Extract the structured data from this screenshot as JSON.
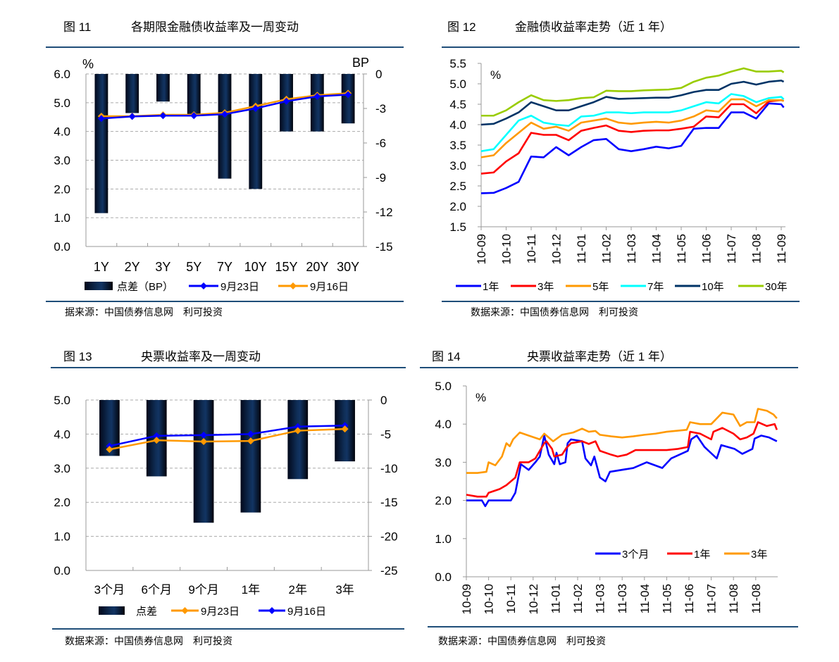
{
  "figures": [
    {
      "label": "图 11",
      "title": "各期限金融债收益率及一周变动",
      "source": "据来源：中国债券信息网　利可投资"
    },
    {
      "label": "图 12",
      "title": "金融债收益率走势（近 1 年）",
      "source": "数据来源：中国债券信息网　利可投资"
    },
    {
      "label": "图 13",
      "title": "央票收益率及一周变动",
      "source": "数据来源：中国债券信息网　利可投资"
    },
    {
      "label": "图 14",
      "title": "央票收益率走势（近 1 年）",
      "source": "数据来源：中国债券信息网　利可投资"
    }
  ],
  "chart_data": [
    {
      "type": "bar+line",
      "left_unit": "%",
      "right_unit": "BP",
      "ylim_left": [
        0,
        6
      ],
      "ylim_right": [
        -15,
        0
      ],
      "left_ticks": [
        "0.0",
        "1.0",
        "2.0",
        "3.0",
        "4.0",
        "5.0",
        "6.0"
      ],
      "right_ticks": [
        "-15",
        "-12",
        "-9",
        "-6",
        "-3",
        "0"
      ],
      "categories": [
        "1Y",
        "2Y",
        "3Y",
        "5Y",
        "7Y",
        "10Y",
        "15Y",
        "20Y",
        "30Y"
      ],
      "bar_series": {
        "name": "点差（BP）",
        "values": [
          -12.1,
          -3.4,
          -2.4,
          -3.6,
          -9.1,
          -10.0,
          -5.0,
          -5.0,
          -4.3
        ]
      },
      "line_series": [
        {
          "name": "9月23日",
          "color": "#0000ff",
          "values": [
            4.45,
            4.52,
            4.55,
            4.55,
            4.6,
            4.8,
            5.05,
            5.22,
            5.28
          ]
        },
        {
          "name": "9月16日",
          "color": "#ff9900",
          "values": [
            4.53,
            4.53,
            4.58,
            4.58,
            4.65,
            4.88,
            5.12,
            5.26,
            5.33
          ]
        }
      ],
      "grid": true,
      "legend": "bottom"
    },
    {
      "type": "line",
      "unit": "%",
      "ylim": [
        1.5,
        5.5
      ],
      "yticks": [
        "1.5",
        "2.0",
        "2.5",
        "3.0",
        "3.5",
        "4.0",
        "4.5",
        "5.0",
        "5.5"
      ],
      "xticks": [
        "10-09",
        "10-10",
        "10-11",
        "10-12",
        "11-01",
        "11-02",
        "11-03",
        "11-04",
        "11-05",
        "11-06",
        "11-07",
        "11-08",
        "11-09"
      ],
      "x": [
        0,
        0.5,
        1,
        1.5,
        2,
        2.5,
        3,
        3.5,
        4,
        4.5,
        5,
        5.5,
        6,
        6.5,
        7,
        7.5,
        8,
        8.5,
        9,
        9.5,
        10,
        10.5,
        11,
        11.5,
        12,
        12.1
      ],
      "series": [
        {
          "name": "1年",
          "color": "#0000ff",
          "values": [
            2.32,
            2.33,
            2.45,
            2.6,
            3.22,
            3.2,
            3.45,
            3.25,
            3.45,
            3.62,
            3.65,
            3.4,
            3.35,
            3.4,
            3.46,
            3.42,
            3.48,
            3.9,
            3.92,
            3.92,
            4.3,
            4.3,
            4.15,
            4.52,
            4.5,
            4.42
          ]
        },
        {
          "name": "3年",
          "color": "#ff0000",
          "values": [
            2.8,
            2.83,
            3.1,
            3.3,
            3.8,
            3.75,
            3.75,
            3.62,
            3.85,
            3.92,
            3.98,
            3.85,
            3.82,
            3.85,
            3.86,
            3.86,
            3.9,
            3.95,
            4.2,
            4.18,
            4.5,
            4.5,
            4.28,
            4.57,
            4.6,
            4.58
          ]
        },
        {
          "name": "5年",
          "color": "#ff9900",
          "values": [
            3.2,
            3.25,
            3.55,
            3.8,
            4.05,
            3.9,
            3.95,
            3.85,
            4.05,
            4.1,
            4.15,
            4.05,
            4.02,
            4.05,
            4.07,
            4.05,
            4.1,
            4.2,
            4.35,
            4.32,
            4.62,
            4.62,
            4.45,
            4.6,
            4.6,
            4.58
          ]
        },
        {
          "name": "7年",
          "color": "#00ffff",
          "values": [
            3.35,
            3.4,
            3.75,
            4.1,
            4.22,
            4.05,
            4.0,
            3.97,
            4.2,
            4.22,
            4.3,
            4.3,
            4.28,
            4.3,
            4.3,
            4.3,
            4.35,
            4.45,
            4.55,
            4.52,
            4.75,
            4.7,
            4.55,
            4.65,
            4.68,
            4.62
          ]
        },
        {
          "name": "10年",
          "color": "#003366",
          "values": [
            4.0,
            4.02,
            4.15,
            4.3,
            4.55,
            4.45,
            4.35,
            4.35,
            4.45,
            4.55,
            4.68,
            4.63,
            4.64,
            4.65,
            4.66,
            4.66,
            4.72,
            4.8,
            4.85,
            4.85,
            5.0,
            5.05,
            4.98,
            5.05,
            5.08,
            5.05
          ]
        },
        {
          "name": "30年",
          "color": "#99cc00",
          "values": [
            4.22,
            4.22,
            4.35,
            4.55,
            4.72,
            4.6,
            4.58,
            4.6,
            4.65,
            4.67,
            4.83,
            4.82,
            4.82,
            4.84,
            4.85,
            4.86,
            4.9,
            5.05,
            5.15,
            5.2,
            5.3,
            5.38,
            5.3,
            5.3,
            5.32,
            5.28
          ]
        }
      ],
      "legend": "bottom"
    },
    {
      "type": "bar+line",
      "ylim_left": [
        0,
        5
      ],
      "ylim_right": [
        -25,
        0
      ],
      "left_ticks": [
        "0.0",
        "1.0",
        "2.0",
        "3.0",
        "4.0",
        "5.0"
      ],
      "right_ticks": [
        "-25",
        "-20",
        "-15",
        "-10",
        "-5",
        "0"
      ],
      "categories": [
        "3个月",
        "6个月",
        "9个月",
        "1年",
        "2年",
        "3年"
      ],
      "bar_series": {
        "name": "点差",
        "values": [
          -8.2,
          -11.2,
          -18.0,
          -16.5,
          -11.6,
          -9.0
        ]
      },
      "line_series": [
        {
          "name": "9月23日",
          "color": "#ff9900",
          "values": [
            3.55,
            3.82,
            3.78,
            3.8,
            4.1,
            4.15
          ]
        },
        {
          "name": "9月16日",
          "color": "#0000ff",
          "values": [
            3.65,
            3.95,
            3.97,
            4.0,
            4.22,
            4.25
          ]
        }
      ],
      "grid": true,
      "legend": "bottom"
    },
    {
      "type": "line",
      "unit": "%",
      "ylim": [
        0,
        5
      ],
      "yticks": [
        "0.0",
        "1.0",
        "2.0",
        "3.0",
        "4.0",
        "5.0"
      ],
      "xticks": [
        "10-09",
        "10-10",
        "10-11",
        "10-12",
        "11-01",
        "11-02",
        "11-03",
        "11-03",
        "11-04",
        "11-05",
        "11-06",
        "11-07",
        "11-08",
        "11-08"
      ],
      "series": [
        {
          "name": "3个月",
          "color": "#0000ff",
          "points": [
            [
              0,
              2.0
            ],
            [
              0.7,
              2.0
            ],
            [
              0.85,
              1.85
            ],
            [
              1,
              2.0
            ],
            [
              1.7,
              2.0
            ],
            [
              2.0,
              2.0
            ],
            [
              2.2,
              2.2
            ],
            [
              2.45,
              2.95
            ],
            [
              2.8,
              2.8
            ],
            [
              3.1,
              3.0
            ],
            [
              3.3,
              3.15
            ],
            [
              3.5,
              3.7
            ],
            [
              3.7,
              3.2
            ],
            [
              3.95,
              2.95
            ],
            [
              4.05,
              3.25
            ],
            [
              4.2,
              2.95
            ],
            [
              4.45,
              3.0
            ],
            [
              4.55,
              3.5
            ],
            [
              4.7,
              3.6
            ],
            [
              5.2,
              3.55
            ],
            [
              5.35,
              3.1
            ],
            [
              5.6,
              2.92
            ],
            [
              5.75,
              3.15
            ],
            [
              6.0,
              2.6
            ],
            [
              6.25,
              2.5
            ],
            [
              6.45,
              2.75
            ],
            [
              7.5,
              2.85
            ],
            [
              8.1,
              3.0
            ],
            [
              8.8,
              2.85
            ],
            [
              9.2,
              3.1
            ],
            [
              9.95,
              3.3
            ],
            [
              10.1,
              3.6
            ],
            [
              10.35,
              3.7
            ],
            [
              10.7,
              3.4
            ],
            [
              11.25,
              3.1
            ],
            [
              11.45,
              3.45
            ],
            [
              12.05,
              3.35
            ],
            [
              12.4,
              3.22
            ],
            [
              12.85,
              3.35
            ],
            [
              12.95,
              3.62
            ],
            [
              13.25,
              3.7
            ],
            [
              13.6,
              3.65
            ],
            [
              13.95,
              3.55
            ]
          ]
        },
        {
          "name": "1年",
          "color": "#ff0000",
          "points": [
            [
              0,
              2.15
            ],
            [
              0.5,
              2.1
            ],
            [
              0.9,
              2.1
            ],
            [
              1.0,
              2.2
            ],
            [
              1.5,
              2.3
            ],
            [
              1.8,
              2.4
            ],
            [
              2.0,
              2.5
            ],
            [
              2.2,
              2.6
            ],
            [
              2.4,
              3.0
            ],
            [
              2.8,
              3.0
            ],
            [
              3.1,
              3.1
            ],
            [
              3.5,
              3.5
            ],
            [
              3.6,
              3.55
            ],
            [
              3.85,
              3.35
            ],
            [
              3.95,
              3.15
            ],
            [
              4.3,
              3.2
            ],
            [
              4.5,
              3.38
            ],
            [
              4.7,
              3.5
            ],
            [
              5.2,
              3.55
            ],
            [
              5.5,
              3.48
            ],
            [
              5.8,
              3.55
            ],
            [
              6.0,
              3.3
            ],
            [
              6.5,
              3.2
            ],
            [
              6.8,
              3.15
            ],
            [
              7.2,
              3.2
            ],
            [
              7.6,
              3.32
            ],
            [
              9,
              3.32
            ],
            [
              9.5,
              3.35
            ],
            [
              9.95,
              3.4
            ],
            [
              10.05,
              3.8
            ],
            [
              10.5,
              3.75
            ],
            [
              11,
              3.6
            ],
            [
              11.1,
              3.8
            ],
            [
              11.5,
              3.9
            ],
            [
              12,
              3.75
            ],
            [
              12.3,
              3.6
            ],
            [
              12.6,
              3.65
            ],
            [
              12.9,
              3.75
            ],
            [
              13.1,
              4.05
            ],
            [
              13.5,
              3.95
            ],
            [
              13.85,
              4.0
            ],
            [
              13.95,
              3.85
            ]
          ]
        },
        {
          "name": "3年",
          "color": "#ff9900",
          "points": [
            [
              0,
              2.72
            ],
            [
              0.5,
              2.72
            ],
            [
              0.9,
              2.75
            ],
            [
              1.0,
              3.0
            ],
            [
              1.3,
              2.92
            ],
            [
              1.6,
              3.15
            ],
            [
              1.8,
              3.5
            ],
            [
              1.95,
              3.42
            ],
            [
              2.1,
              3.6
            ],
            [
              2.4,
              3.78
            ],
            [
              2.8,
              3.7
            ],
            [
              3.3,
              3.6
            ],
            [
              3.5,
              3.75
            ],
            [
              3.9,
              3.55
            ],
            [
              4.3,
              3.72
            ],
            [
              4.8,
              3.78
            ],
            [
              5.2,
              3.88
            ],
            [
              5.5,
              3.8
            ],
            [
              5.8,
              3.82
            ],
            [
              6.0,
              3.72
            ],
            [
              6.5,
              3.68
            ],
            [
              7.0,
              3.65
            ],
            [
              7.5,
              3.68
            ],
            [
              8.0,
              3.72
            ],
            [
              8.5,
              3.75
            ],
            [
              9,
              3.8
            ],
            [
              9.9,
              3.85
            ],
            [
              10.05,
              4.05
            ],
            [
              10.5,
              4.0
            ],
            [
              11,
              4.0
            ],
            [
              11.5,
              4.3
            ],
            [
              12,
              4.25
            ],
            [
              12.3,
              3.95
            ],
            [
              12.6,
              4.05
            ],
            [
              12.95,
              4.05
            ],
            [
              13.1,
              4.4
            ],
            [
              13.5,
              4.35
            ],
            [
              13.8,
              4.25
            ],
            [
              13.95,
              4.15
            ]
          ]
        }
      ],
      "legend": "inside-bottom-right"
    }
  ]
}
